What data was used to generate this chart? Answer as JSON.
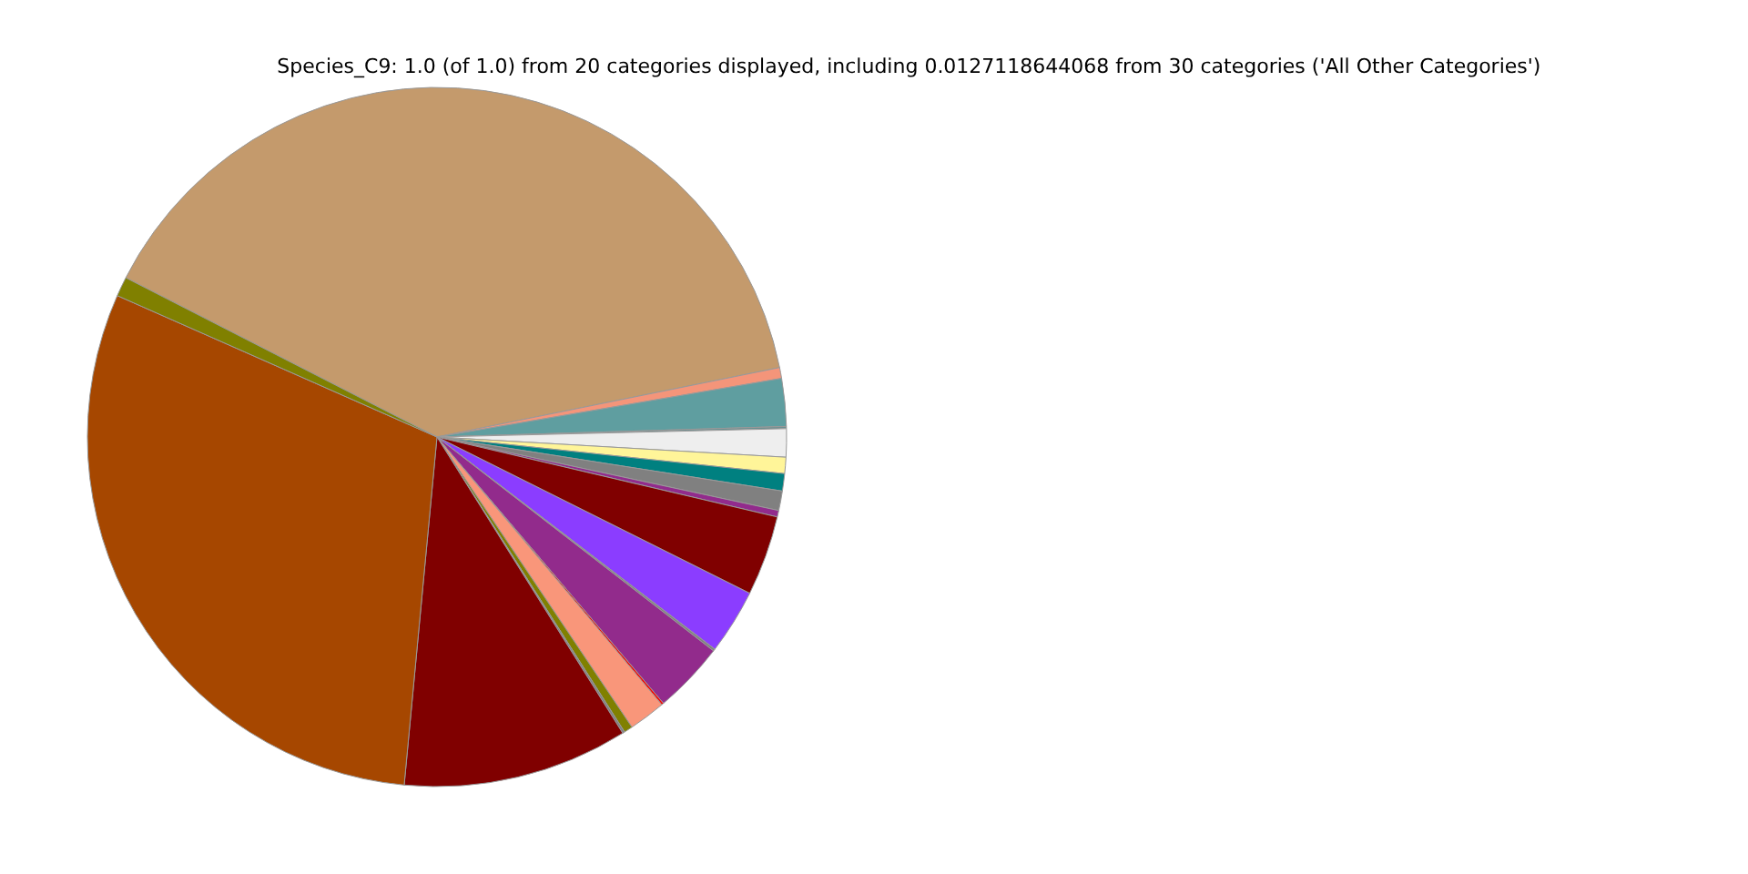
{
  "chart_data": {
    "type": "pie",
    "title": "Species_C9: 1.0 (of 1.0) from 20 categories displayed, including 0.0127118644068 from 30 categories ('All Other Categories')",
    "categories": [
      null,
      null,
      null,
      null,
      null,
      null,
      null,
      null,
      null,
      null,
      null,
      null,
      null,
      null,
      null,
      null,
      null,
      null,
      null,
      null
    ],
    "values": [
      39.25,
      0.5,
      2.2,
      0.1,
      1.3,
      0.75,
      0.8,
      0.9,
      0.3,
      3.7,
      3.0,
      0.1,
      3.3,
      0.1,
      1.7,
      0.4,
      0.1,
      10.4,
      30.1,
      0.9
    ],
    "colors": [
      "#c49a6c",
      "#f4957a",
      "#5f9ea0",
      "#6b8f90",
      "#eeeeee",
      "#fff599",
      "#008080",
      "#808080",
      "#922b8c",
      "#800000",
      "#8b3dff",
      "#808080",
      "#922b8c",
      "#ff0000",
      "#f9967a",
      "#808000",
      "#808080",
      "#800000",
      "#a64700",
      "#808000"
    ],
    "legend": false
  }
}
